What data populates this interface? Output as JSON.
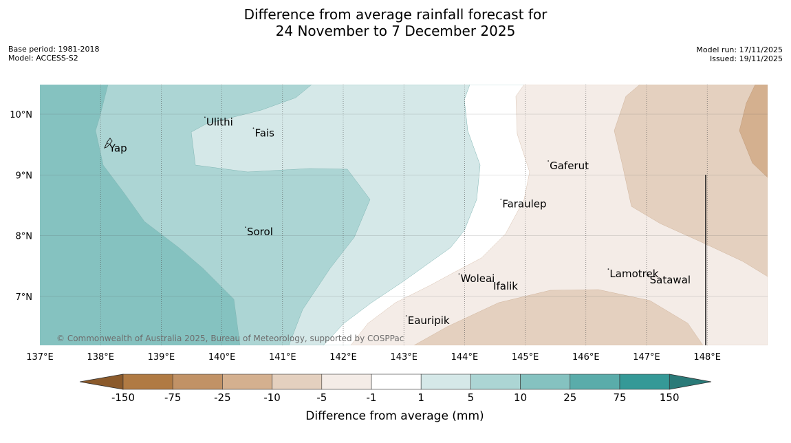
{
  "title": {
    "line1": "Difference from average rainfall forecast for",
    "line2": "24 November to 7 December 2025"
  },
  "info_left": {
    "base_period": "Base period: 1981-2018",
    "model": "Model: ACCESS-S2"
  },
  "info_right": {
    "model_run": "Model run: 17/11/2025",
    "issued": "Issued: 19/11/2025"
  },
  "map": {
    "lon_range": [
      137,
      149
    ],
    "lat_range": [
      6.2,
      10.5
    ],
    "lon_ticks": [
      "137°E",
      "138°E",
      "139°E",
      "140°E",
      "141°E",
      "142°E",
      "143°E",
      "144°E",
      "145°E",
      "146°E",
      "147°E",
      "148°E"
    ],
    "lat_ticks": [
      "10°N",
      "9°N",
      "8°N",
      "7°N"
    ],
    "places": [
      {
        "name": "Yap",
        "lon": 138.12,
        "lat": 9.52
      },
      {
        "name": "Ulithi",
        "lon": 139.72,
        "lat": 9.95
      },
      {
        "name": "Fais",
        "lon": 140.52,
        "lat": 9.77
      },
      {
        "name": "Gaferut",
        "lon": 145.38,
        "lat": 9.23
      },
      {
        "name": "Faraulep",
        "lon": 144.6,
        "lat": 8.6
      },
      {
        "name": "Sorol",
        "lon": 140.39,
        "lat": 8.14
      },
      {
        "name": "Woleai",
        "lon": 143.91,
        "lat": 7.37
      },
      {
        "name": "Ifalik",
        "lon": 144.45,
        "lat": 7.25
      },
      {
        "name": "Lamotrek",
        "lon": 146.37,
        "lat": 7.45
      },
      {
        "name": "Satawal",
        "lon": 147.03,
        "lat": 7.35
      },
      {
        "name": "Eauripik",
        "lon": 143.04,
        "lat": 6.68
      }
    ],
    "copyright": "© Commonwealth of Australia 2025, Bureau of Meteorology, supported by COSPPac"
  },
  "colorbar": {
    "ticks": [
      "-150",
      "-75",
      "-25",
      "-10",
      "-5",
      "-1",
      "1",
      "5",
      "10",
      "25",
      "75",
      "150"
    ],
    "colors": [
      "#b07a43",
      "#c19266",
      "#d4b08f",
      "#e4d0bf",
      "#f4ece7",
      "#ffffff",
      "#d5e8e8",
      "#acd5d4",
      "#85c2c0",
      "#5aacaa",
      "#359997"
    ],
    "under_color": "#8b5a2b",
    "over_color": "#2a7a78",
    "label": "Difference from average (mm)"
  },
  "colors": {
    "grid": "#555555",
    "teal_strong": "#85c2c0",
    "teal_mid": "#acd5d4",
    "teal_light": "#d5e8e8",
    "brown_pale": "#f4ece7",
    "brown_light": "#e4d0bf",
    "brown_mid": "#d4b08f"
  }
}
